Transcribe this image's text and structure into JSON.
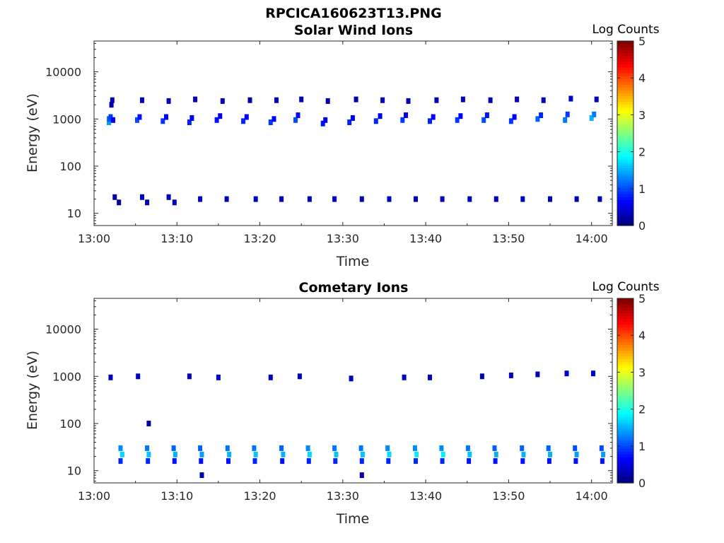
{
  "figure": {
    "title": "RPCICA160623T13.PNG"
  },
  "chart_data": [
    {
      "type": "heatmap",
      "title": "Solar Wind Ions",
      "xlabel": "Time",
      "ylabel": "Energy (eV)",
      "x_ticks": [
        "13:00",
        "13:10",
        "13:20",
        "13:30",
        "13:40",
        "13:50",
        "14:00"
      ],
      "x_range_minutes": [
        0,
        62.5
      ],
      "y_scale": "log",
      "y_ticks": [
        "10",
        "100",
        "1000",
        "10000"
      ],
      "y_range": [
        5.5,
        45000
      ],
      "colorbar": {
        "label": "Log Counts",
        "ticks": [
          "0",
          "1",
          "2",
          "3",
          "4",
          "5"
        ],
        "range": [
          0,
          5
        ],
        "colormap": "jet"
      },
      "cells": [
        {
          "t": 1.8,
          "e": 850,
          "v": 1.4
        },
        {
          "t": 1.8,
          "e": 1000,
          "v": 1.1
        },
        {
          "t": 2.0,
          "e": 1100,
          "v": 0.9
        },
        {
          "t": 2.3,
          "e": 950,
          "v": 0.6
        },
        {
          "t": 2.2,
          "e": 2500,
          "v": 0.3
        },
        {
          "t": 2.1,
          "e": 2000,
          "v": 0.2
        },
        {
          "t": 5.2,
          "e": 950,
          "v": 1.0
        },
        {
          "t": 5.5,
          "e": 1100,
          "v": 0.7
        },
        {
          "t": 5.8,
          "e": 2500,
          "v": 0.3
        },
        {
          "t": 8.3,
          "e": 900,
          "v": 0.9
        },
        {
          "t": 8.7,
          "e": 1100,
          "v": 0.6
        },
        {
          "t": 9.0,
          "e": 2400,
          "v": 0.3
        },
        {
          "t": 11.5,
          "e": 850,
          "v": 0.8
        },
        {
          "t": 11.8,
          "e": 1050,
          "v": 0.6
        },
        {
          "t": 12.2,
          "e": 2600,
          "v": 0.3
        },
        {
          "t": 14.8,
          "e": 950,
          "v": 0.7
        },
        {
          "t": 15.2,
          "e": 1150,
          "v": 0.5
        },
        {
          "t": 15.5,
          "e": 2400,
          "v": 0.3
        },
        {
          "t": 18.0,
          "e": 900,
          "v": 0.8
        },
        {
          "t": 18.4,
          "e": 1100,
          "v": 0.6
        },
        {
          "t": 18.8,
          "e": 2500,
          "v": 0.2
        },
        {
          "t": 21.3,
          "e": 850,
          "v": 0.9
        },
        {
          "t": 21.7,
          "e": 1000,
          "v": 0.6
        },
        {
          "t": 22.0,
          "e": 2500,
          "v": 0.3
        },
        {
          "t": 24.3,
          "e": 950,
          "v": 1.0
        },
        {
          "t": 24.6,
          "e": 1200,
          "v": 0.7
        },
        {
          "t": 25.0,
          "e": 2600,
          "v": 0.3
        },
        {
          "t": 27.6,
          "e": 800,
          "v": 0.7
        },
        {
          "t": 27.9,
          "e": 950,
          "v": 0.5
        },
        {
          "t": 28.2,
          "e": 2400,
          "v": 0.2
        },
        {
          "t": 30.8,
          "e": 850,
          "v": 0.8
        },
        {
          "t": 31.2,
          "e": 1050,
          "v": 0.5
        },
        {
          "t": 31.6,
          "e": 2600,
          "v": 0.2
        },
        {
          "t": 34.0,
          "e": 900,
          "v": 0.8
        },
        {
          "t": 34.5,
          "e": 1150,
          "v": 0.6
        },
        {
          "t": 34.8,
          "e": 2500,
          "v": 0.3
        },
        {
          "t": 37.2,
          "e": 950,
          "v": 0.9
        },
        {
          "t": 37.6,
          "e": 1200,
          "v": 0.6
        },
        {
          "t": 37.9,
          "e": 2400,
          "v": 0.3
        },
        {
          "t": 40.5,
          "e": 900,
          "v": 0.8
        },
        {
          "t": 40.9,
          "e": 1100,
          "v": 0.6
        },
        {
          "t": 41.3,
          "e": 2500,
          "v": 0.3
        },
        {
          "t": 43.8,
          "e": 950,
          "v": 0.9
        },
        {
          "t": 44.2,
          "e": 1150,
          "v": 0.6
        },
        {
          "t": 44.5,
          "e": 2600,
          "v": 0.3
        },
        {
          "t": 47.0,
          "e": 950,
          "v": 1.0
        },
        {
          "t": 47.4,
          "e": 1200,
          "v": 0.7
        },
        {
          "t": 47.8,
          "e": 2500,
          "v": 0.3
        },
        {
          "t": 50.3,
          "e": 900,
          "v": 0.9
        },
        {
          "t": 50.7,
          "e": 1100,
          "v": 0.6
        },
        {
          "t": 51.0,
          "e": 2600,
          "v": 0.3
        },
        {
          "t": 53.5,
          "e": 1000,
          "v": 1.1
        },
        {
          "t": 53.9,
          "e": 1200,
          "v": 0.8
        },
        {
          "t": 54.2,
          "e": 2500,
          "v": 0.3
        },
        {
          "t": 56.8,
          "e": 950,
          "v": 1.2
        },
        {
          "t": 57.1,
          "e": 1250,
          "v": 0.9
        },
        {
          "t": 57.5,
          "e": 2700,
          "v": 0.3
        },
        {
          "t": 60.0,
          "e": 1050,
          "v": 1.5
        },
        {
          "t": 60.3,
          "e": 1250,
          "v": 1.2
        },
        {
          "t": 60.6,
          "e": 2600,
          "v": 0.3
        },
        {
          "t": 2.5,
          "e": 22,
          "v": 0.2
        },
        {
          "t": 3.0,
          "e": 17,
          "v": 0.2
        },
        {
          "t": 5.8,
          "e": 22,
          "v": 0.3
        },
        {
          "t": 6.4,
          "e": 17,
          "v": 0.3
        },
        {
          "t": 9.0,
          "e": 22,
          "v": 0.3
        },
        {
          "t": 9.7,
          "e": 17,
          "v": 0.3
        },
        {
          "t": 12.8,
          "e": 20,
          "v": 0.3
        },
        {
          "t": 16.0,
          "e": 20,
          "v": 0.3
        },
        {
          "t": 19.5,
          "e": 20,
          "v": 0.3
        },
        {
          "t": 22.6,
          "e": 20,
          "v": 0.3
        },
        {
          "t": 26.0,
          "e": 20,
          "v": 0.3
        },
        {
          "t": 29.0,
          "e": 20,
          "v": 0.3
        },
        {
          "t": 32.3,
          "e": 20,
          "v": 0.3
        },
        {
          "t": 35.6,
          "e": 20,
          "v": 0.3
        },
        {
          "t": 38.8,
          "e": 20,
          "v": 0.3
        },
        {
          "t": 42.0,
          "e": 20,
          "v": 0.3
        },
        {
          "t": 45.3,
          "e": 20,
          "v": 0.3
        },
        {
          "t": 48.5,
          "e": 20,
          "v": 0.3
        },
        {
          "t": 51.7,
          "e": 20,
          "v": 0.3
        },
        {
          "t": 55.0,
          "e": 20,
          "v": 0.3
        },
        {
          "t": 58.2,
          "e": 20,
          "v": 0.3
        },
        {
          "t": 61.0,
          "e": 20,
          "v": 0.3
        }
      ]
    },
    {
      "type": "heatmap",
      "title": "Cometary Ions",
      "xlabel": "Time",
      "ylabel": "Energy (eV)",
      "x_ticks": [
        "13:00",
        "13:10",
        "13:20",
        "13:30",
        "13:40",
        "13:50",
        "14:00"
      ],
      "x_range_minutes": [
        0,
        62.5
      ],
      "y_scale": "log",
      "y_ticks": [
        "10",
        "100",
        "1000",
        "10000"
      ],
      "y_range": [
        5.5,
        45000
      ],
      "colorbar": {
        "label": "Log Counts",
        "ticks": [
          "0",
          "1",
          "2",
          "3",
          "4",
          "5"
        ],
        "range": [
          0,
          5
        ],
        "colormap": "jet"
      },
      "cells": [
        {
          "t": 3.2,
          "e": 30,
          "v": 1.3
        },
        {
          "t": 3.4,
          "e": 22,
          "v": 1.7
        },
        {
          "t": 3.2,
          "e": 16,
          "v": 0.8
        },
        {
          "t": 6.4,
          "e": 30,
          "v": 1.2
        },
        {
          "t": 6.6,
          "e": 22,
          "v": 1.6
        },
        {
          "t": 6.5,
          "e": 16,
          "v": 0.8
        },
        {
          "t": 9.6,
          "e": 30,
          "v": 1.1
        },
        {
          "t": 9.8,
          "e": 22,
          "v": 1.5
        },
        {
          "t": 9.7,
          "e": 16,
          "v": 0.7
        },
        {
          "t": 12.8,
          "e": 30,
          "v": 1.1
        },
        {
          "t": 13.0,
          "e": 22,
          "v": 1.4
        },
        {
          "t": 12.9,
          "e": 16,
          "v": 0.7
        },
        {
          "t": 16.1,
          "e": 30,
          "v": 1.2
        },
        {
          "t": 16.3,
          "e": 22,
          "v": 1.5
        },
        {
          "t": 16.2,
          "e": 16,
          "v": 0.7
        },
        {
          "t": 19.3,
          "e": 30,
          "v": 1.2
        },
        {
          "t": 19.5,
          "e": 22,
          "v": 1.6
        },
        {
          "t": 19.4,
          "e": 16,
          "v": 0.8
        },
        {
          "t": 22.6,
          "e": 30,
          "v": 1.1
        },
        {
          "t": 22.8,
          "e": 22,
          "v": 1.5
        },
        {
          "t": 22.7,
          "e": 16,
          "v": 0.7
        },
        {
          "t": 25.8,
          "e": 30,
          "v": 1.3
        },
        {
          "t": 26.0,
          "e": 22,
          "v": 1.7
        },
        {
          "t": 25.9,
          "e": 16,
          "v": 0.8
        },
        {
          "t": 29.0,
          "e": 30,
          "v": 1.2
        },
        {
          "t": 29.2,
          "e": 22,
          "v": 1.6
        },
        {
          "t": 29.1,
          "e": 16,
          "v": 0.8
        },
        {
          "t": 32.2,
          "e": 30,
          "v": 1.2
        },
        {
          "t": 32.4,
          "e": 22,
          "v": 1.6
        },
        {
          "t": 32.3,
          "e": 16,
          "v": 0.8
        },
        {
          "t": 35.4,
          "e": 30,
          "v": 1.3
        },
        {
          "t": 35.6,
          "e": 22,
          "v": 1.7
        },
        {
          "t": 35.5,
          "e": 16,
          "v": 0.8
        },
        {
          "t": 38.7,
          "e": 30,
          "v": 1.3
        },
        {
          "t": 38.9,
          "e": 22,
          "v": 1.8
        },
        {
          "t": 38.8,
          "e": 16,
          "v": 0.8
        },
        {
          "t": 41.9,
          "e": 30,
          "v": 1.3
        },
        {
          "t": 42.1,
          "e": 22,
          "v": 1.8
        },
        {
          "t": 42.0,
          "e": 16,
          "v": 0.8
        },
        {
          "t": 45.1,
          "e": 30,
          "v": 1.2
        },
        {
          "t": 45.3,
          "e": 22,
          "v": 1.6
        },
        {
          "t": 45.2,
          "e": 16,
          "v": 0.7
        },
        {
          "t": 48.3,
          "e": 30,
          "v": 1.1
        },
        {
          "t": 48.5,
          "e": 22,
          "v": 1.5
        },
        {
          "t": 48.4,
          "e": 16,
          "v": 0.7
        },
        {
          "t": 51.6,
          "e": 30,
          "v": 1.1
        },
        {
          "t": 51.8,
          "e": 22,
          "v": 1.5
        },
        {
          "t": 51.7,
          "e": 16,
          "v": 0.7
        },
        {
          "t": 54.8,
          "e": 30,
          "v": 1.1
        },
        {
          "t": 55.0,
          "e": 22,
          "v": 1.5
        },
        {
          "t": 54.9,
          "e": 16,
          "v": 0.7
        },
        {
          "t": 58.0,
          "e": 30,
          "v": 1.0
        },
        {
          "t": 58.2,
          "e": 22,
          "v": 1.4
        },
        {
          "t": 58.1,
          "e": 16,
          "v": 0.7
        },
        {
          "t": 61.2,
          "e": 30,
          "v": 1.0
        },
        {
          "t": 61.4,
          "e": 22,
          "v": 1.4
        },
        {
          "t": 61.3,
          "e": 16,
          "v": 0.7
        },
        {
          "t": 2.0,
          "e": 950,
          "v": 0.3
        },
        {
          "t": 5.3,
          "e": 1000,
          "v": 0.3
        },
        {
          "t": 11.5,
          "e": 1000,
          "v": 0.3
        },
        {
          "t": 15.0,
          "e": 950,
          "v": 0.3
        },
        {
          "t": 21.3,
          "e": 950,
          "v": 0.3
        },
        {
          "t": 24.8,
          "e": 1000,
          "v": 0.3
        },
        {
          "t": 31.0,
          "e": 900,
          "v": 0.3
        },
        {
          "t": 37.4,
          "e": 950,
          "v": 0.3
        },
        {
          "t": 40.5,
          "e": 950,
          "v": 0.3
        },
        {
          "t": 46.8,
          "e": 1000,
          "v": 0.3
        },
        {
          "t": 50.3,
          "e": 1050,
          "v": 0.3
        },
        {
          "t": 53.5,
          "e": 1100,
          "v": 0.3
        },
        {
          "t": 57.0,
          "e": 1150,
          "v": 0.4
        },
        {
          "t": 60.2,
          "e": 1150,
          "v": 0.4
        },
        {
          "t": 6.6,
          "e": 100,
          "v": 0.2
        },
        {
          "t": 13.0,
          "e": 8,
          "v": 0.2
        },
        {
          "t": 32.3,
          "e": 8,
          "v": 0.2
        }
      ]
    }
  ]
}
